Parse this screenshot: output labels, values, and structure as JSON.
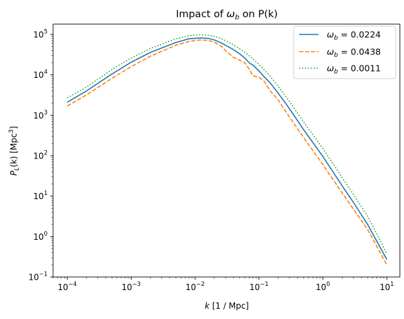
{
  "chart_data": {
    "type": "line",
    "title_prefix": "Impact of ",
    "title_symbol": "ω",
    "title_sub": "b",
    "title_suffix": " on P(k)",
    "xlabel_var": "k",
    "xlabel_unit": " [1 / Mpc]",
    "ylabel_var": "P",
    "ylabel_sub": "L",
    "ylabel_mid": "(k) [Mpc",
    "ylabel_sup": "3",
    "ylabel_end": "]",
    "xscale": "log",
    "yscale": "log",
    "xlim": [
      6e-05,
      16
    ],
    "ylim": [
      0.1,
      180000
    ],
    "x_ticks": [
      {
        "value": 0.0001,
        "base": "10",
        "exp": "−4"
      },
      {
        "value": 0.001,
        "base": "10",
        "exp": "−3"
      },
      {
        "value": 0.01,
        "base": "10",
        "exp": "−2"
      },
      {
        "value": 0.1,
        "base": "10",
        "exp": "−1"
      },
      {
        "value": 1,
        "base": "10",
        "exp": "0"
      },
      {
        "value": 10,
        "base": "10",
        "exp": "1"
      }
    ],
    "y_ticks": [
      {
        "value": 0.1,
        "base": "10",
        "exp": "−1"
      },
      {
        "value": 1,
        "base": "10",
        "exp": "0"
      },
      {
        "value": 10,
        "base": "10",
        "exp": "1"
      },
      {
        "value": 100,
        "base": "10",
        "exp": "2"
      },
      {
        "value": 1000,
        "base": "10",
        "exp": "3"
      },
      {
        "value": 10000,
        "base": "10",
        "exp": "4"
      },
      {
        "value": 100000,
        "base": "10",
        "exp": "5"
      }
    ],
    "grid": false,
    "legend_position": "top-right",
    "series": [
      {
        "legend_symbol": "ω",
        "legend_sub": "b",
        "legend_value": " = 0.0224",
        "color": "#1f77b4",
        "style": "solid",
        "x": [
          0.0001,
          0.0002,
          0.0005,
          0.001,
          0.002,
          0.005,
          0.008,
          0.012,
          0.016,
          0.02,
          0.025,
          0.03,
          0.04,
          0.05,
          0.06,
          0.07,
          0.08,
          0.1,
          0.12,
          0.15,
          0.2,
          0.3,
          0.5,
          1,
          2,
          3,
          5,
          10
        ],
        "y": [
          2100,
          4000,
          10500,
          20500,
          36000,
          63000,
          78000,
          82000,
          80000,
          73000,
          63000,
          54000,
          42000,
          33000,
          26000,
          20000,
          17500,
          12500,
          9000,
          6300,
          3500,
          1450,
          440,
          95,
          18,
          7,
          2,
          0.27
        ]
      },
      {
        "legend_symbol": "ω",
        "legend_sub": "b",
        "legend_value": " = 0.0438",
        "color": "#ff7f0e",
        "style": "dashed",
        "x": [
          0.0001,
          0.0002,
          0.0005,
          0.001,
          0.002,
          0.005,
          0.008,
          0.012,
          0.016,
          0.02,
          0.025,
          0.03,
          0.04,
          0.05,
          0.06,
          0.07,
          0.08,
          0.1,
          0.12,
          0.15,
          0.2,
          0.3,
          0.5,
          1,
          2,
          3,
          5,
          10
        ],
        "y": [
          1700,
          3200,
          8200,
          16000,
          29000,
          54000,
          67000,
          73000,
          71000,
          64000,
          53000,
          40000,
          27000,
          23000,
          20000,
          14000,
          9500,
          8700,
          7000,
          4000,
          2400,
          900,
          280,
          60,
          12,
          4.8,
          1.5,
          0.2
        ]
      },
      {
        "legend_symbol": "ω",
        "legend_sub": "b",
        "legend_value": " = 0.0011",
        "color": "#2ca02c",
        "style": "dotted",
        "x": [
          0.0001,
          0.0002,
          0.0005,
          0.001,
          0.002,
          0.005,
          0.008,
          0.012,
          0.016,
          0.02,
          0.025,
          0.03,
          0.04,
          0.05,
          0.06,
          0.07,
          0.08,
          0.1,
          0.12,
          0.15,
          0.2,
          0.3,
          0.5,
          1,
          2,
          3,
          5,
          10
        ],
        "y": [
          2700,
          5000,
          13500,
          26000,
          45000,
          78000,
          93000,
          98000,
          96000,
          90000,
          80000,
          70000,
          55000,
          44000,
          36000,
          30000,
          25000,
          18000,
          13500,
          9200,
          5200,
          2200,
          680,
          150,
          29,
          11,
          3.2,
          0.38
        ]
      }
    ]
  }
}
